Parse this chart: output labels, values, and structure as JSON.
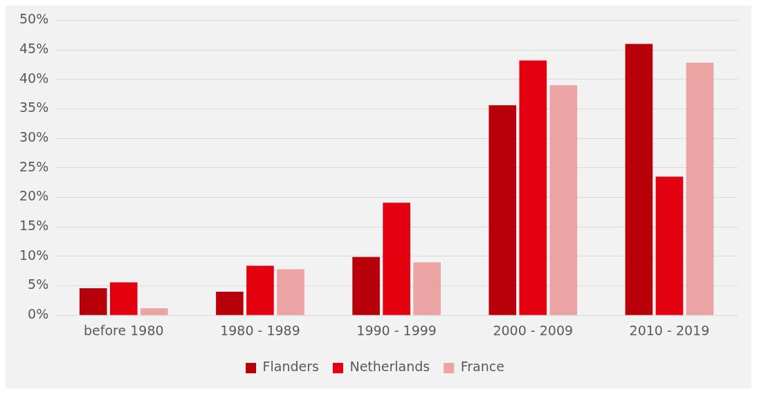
{
  "chart_data": {
    "type": "bar",
    "categories": [
      "before 1980",
      "1980 - 1989",
      "1990 - 1999",
      "2000 - 2009",
      "2010 - 2019"
    ],
    "series": [
      {
        "name": "Flanders",
        "color": "#b8000a",
        "values": [
          4.6,
          4.0,
          9.9,
          35.6,
          46.0
        ]
      },
      {
        "name": "Netherlands",
        "color": "#e3000f",
        "values": [
          5.6,
          8.4,
          19.1,
          43.2,
          23.5
        ]
      },
      {
        "name": "France",
        "color": "#eba3a3",
        "values": [
          1.2,
          7.8,
          9.0,
          39.0,
          42.8
        ]
      }
    ],
    "ylim": [
      0,
      50
    ],
    "yticks": [
      {
        "value": 0,
        "label": "0%"
      },
      {
        "value": 5,
        "label": "5%"
      },
      {
        "value": 10,
        "label": "10%"
      },
      {
        "value": 15,
        "label": "15%"
      },
      {
        "value": 20,
        "label": "20%"
      },
      {
        "value": 25,
        "label": "25%"
      },
      {
        "value": 30,
        "label": "30%"
      },
      {
        "value": 35,
        "label": "35%"
      },
      {
        "value": 40,
        "label": "40%"
      },
      {
        "value": 45,
        "label": "45%"
      },
      {
        "value": 50,
        "label": "50%"
      }
    ],
    "grid": "y",
    "legend": "bottom"
  }
}
